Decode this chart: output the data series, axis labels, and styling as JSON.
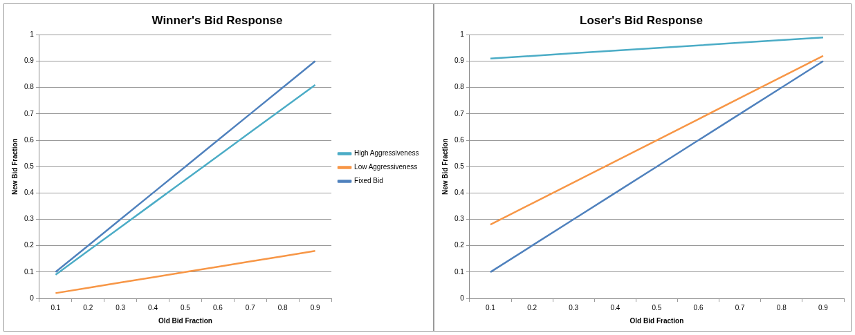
{
  "chart_data": [
    {
      "type": "line",
      "title": "Winner's Bid Response",
      "xlabel": "Old Bid Fraction",
      "ylabel": "New Bid Fraction",
      "categories": [
        "0.1",
        "0.2",
        "0.3",
        "0.4",
        "0.5",
        "0.6",
        "0.7",
        "0.8",
        "0.9"
      ],
      "ylim": [
        0,
        1
      ],
      "yticks": [
        0,
        0.1,
        0.2,
        0.3,
        0.4,
        0.5,
        0.6,
        0.7,
        0.8,
        0.9,
        1
      ],
      "grid": "y",
      "legend": "right",
      "marker": "none",
      "line_style": "solid",
      "series": [
        {
          "name": "High Aggressiveness",
          "color": "#4bacc6",
          "values": [
            0.09,
            0.18,
            0.27,
            0.36,
            0.45,
            0.54,
            0.63,
            0.72,
            0.81
          ]
        },
        {
          "name": "Low Aggressiveness",
          "color": "#f79646",
          "values": [
            0.02,
            0.04,
            0.06,
            0.08,
            0.1,
            0.12,
            0.14,
            0.16,
            0.18
          ]
        },
        {
          "name": "Fixed Bid",
          "color": "#4f81bd",
          "values": [
            0.1,
            0.2,
            0.3,
            0.4,
            0.5,
            0.6,
            0.7,
            0.8,
            0.9
          ]
        }
      ]
    },
    {
      "type": "line",
      "title": "Loser's Bid Response",
      "xlabel": "Old Bid Fraction",
      "ylabel": "New Bid Fraction",
      "categories": [
        "0.1",
        "0.2",
        "0.3",
        "0.4",
        "0.5",
        "0.6",
        "0.7",
        "0.8",
        "0.9"
      ],
      "ylim": [
        0,
        1
      ],
      "yticks": [
        0,
        0.1,
        0.2,
        0.3,
        0.4,
        0.5,
        0.6,
        0.7,
        0.8,
        0.9,
        1
      ],
      "grid": "y",
      "marker": "none",
      "line_style": "solid",
      "series": [
        {
          "color": "#4bacc6",
          "values": [
            0.91,
            0.92,
            0.93,
            0.94,
            0.95,
            0.96,
            0.97,
            0.98,
            0.99
          ]
        },
        {
          "color": "#f79646",
          "values": [
            0.28,
            0.36,
            0.44,
            0.52,
            0.6,
            0.68,
            0.76,
            0.84,
            0.92
          ]
        },
        {
          "color": "#4f81bd",
          "values": [
            0.1,
            0.2,
            0.3,
            0.4,
            0.5,
            0.6,
            0.7,
            0.8,
            0.9
          ]
        }
      ]
    }
  ]
}
